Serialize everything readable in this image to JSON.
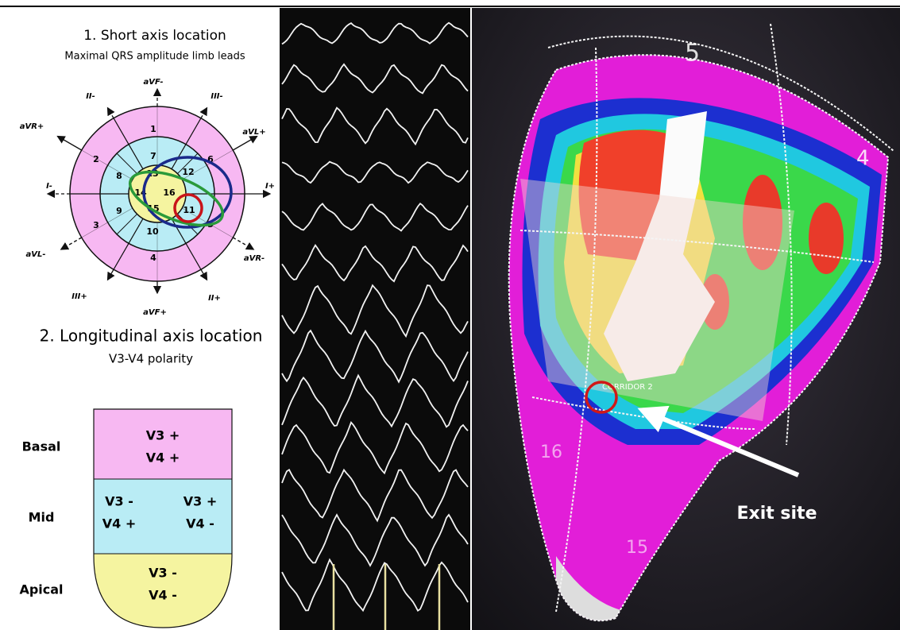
{
  "short_axis": {
    "title": "1. Short axis location",
    "subtitle": "Maximal QRS amplitude limb leads",
    "leads": [
      "aVF-",
      "II-",
      "III-",
      "aVR+",
      "aVL+",
      "I-",
      "I+",
      "aVL-",
      "aVR-",
      "III+",
      "aVF+",
      "II+"
    ],
    "segments": [
      "1",
      "2",
      "3",
      "4",
      "5",
      "6",
      "7",
      "8",
      "9",
      "10",
      "11",
      "12",
      "13",
      "14",
      "15",
      "16"
    ]
  },
  "longitudinal": {
    "title": "2. Longitudinal axis location",
    "subtitle": "V3-V4 polarity",
    "rows": [
      {
        "label": "Basal",
        "cells": [
          [
            "V3 +",
            "V4 +"
          ]
        ]
      },
      {
        "label": "Mid",
        "cells": [
          [
            "V3 -",
            "V4 +"
          ],
          [
            "V3 +",
            "V4 -"
          ]
        ]
      },
      {
        "label": "Apical",
        "cells": [
          [
            "V3 -",
            "V4 -"
          ]
        ]
      }
    ]
  },
  "map": {
    "segment_labels": [
      "5",
      "4",
      "16",
      "15"
    ],
    "corridor": "CORRIDOR 2",
    "exit_label": "Exit site"
  }
}
